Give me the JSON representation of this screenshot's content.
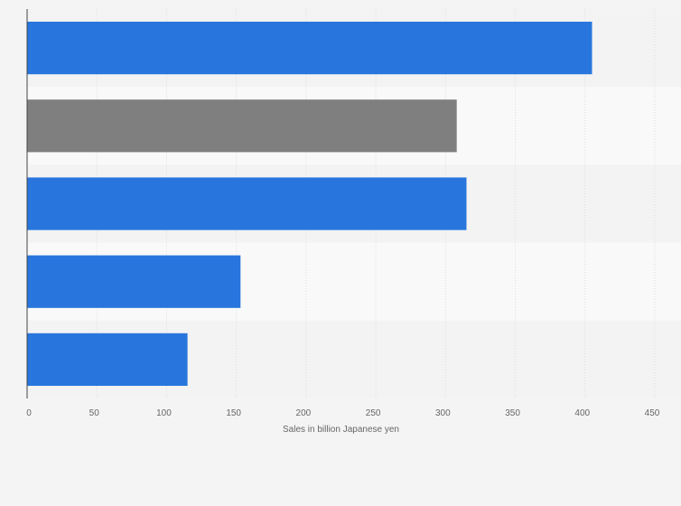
{
  "chart_data": {
    "type": "bar",
    "orientation": "horizontal",
    "categories": [
      "",
      "",
      "",
      "",
      ""
    ],
    "values": [
      405,
      308,
      315,
      153,
      115
    ],
    "bar_colors": [
      "#2876dd",
      "#7f7f7f",
      "#2876dd",
      "#2876dd",
      "#2876dd"
    ],
    "xlabel": "Sales in billion Japanese yen",
    "ylabel": "",
    "xlim": [
      0,
      450
    ],
    "x_ticks": [
      "0",
      "50",
      "100",
      "150",
      "200",
      "250",
      "300",
      "350",
      "400",
      "450"
    ],
    "grid": true,
    "legend": "none"
  },
  "colors": {
    "background": "#f4f4f4",
    "band_light": "#f9f9f9",
    "band_dark": "#f3f3f3",
    "gridline": "#dddddd",
    "axis": "#444444"
  }
}
